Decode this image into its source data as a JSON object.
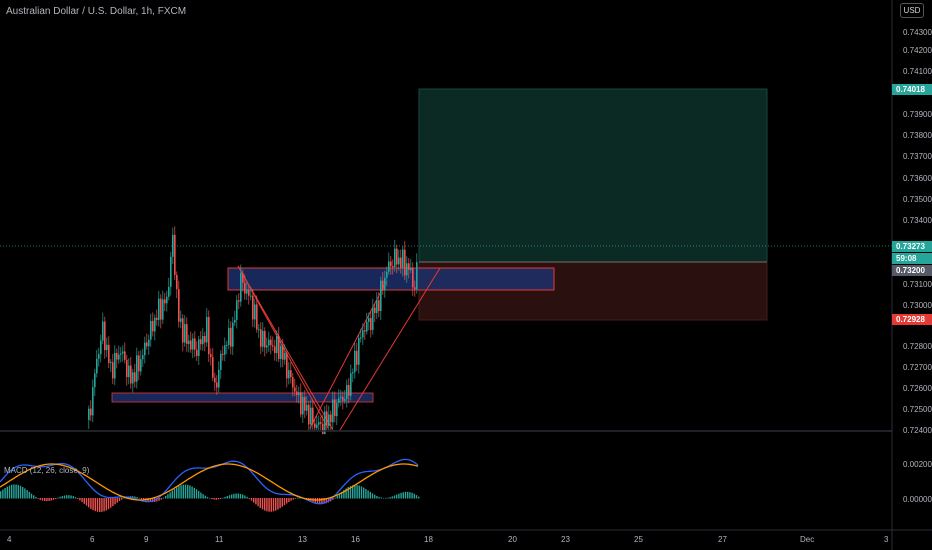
{
  "header": {
    "title": "Australian Dollar / U.S. Dollar, 1h, FXCM",
    "currency_badge": "USD"
  },
  "price_axis": {
    "ticks": [
      "0.74300",
      "0.74200",
      "0.74100",
      "0.73900",
      "0.73800",
      "0.73700",
      "0.73600",
      "0.73500",
      "0.73400",
      "0.73100",
      "0.73000",
      "0.72800",
      "0.72700",
      "0.72600",
      "0.72500",
      "0.72400"
    ],
    "labels": {
      "target": "0.74018",
      "current": "0.73273",
      "countdown": "59:08",
      "entry": "0.73200",
      "stop": "0.72928"
    }
  },
  "indicator": {
    "label": "MACD (12, 26, close, 9)",
    "ticks": [
      "0.00200",
      "0.00000"
    ]
  },
  "time_axis": {
    "ticks": [
      "4",
      "6",
      "9",
      "11",
      "13",
      "16",
      "18",
      "20",
      "23",
      "25",
      "27",
      "Dec",
      "3"
    ]
  },
  "colors": {
    "background": "#000000",
    "up": "#26a69a",
    "down": "#ef5350",
    "profit_zone": "#0b2a24",
    "loss_zone": "#2b1010",
    "zone_fill": "#1d2f6b",
    "zone_border": "#e53935",
    "macd_line": "#2962ff",
    "signal_line": "#ff9800"
  }
}
